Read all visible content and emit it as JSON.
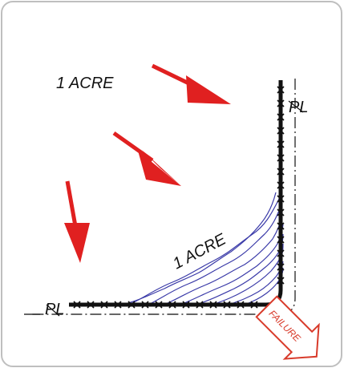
{
  "labels": {
    "acre_top": "1 ACRE",
    "acre_corner": "1 ACRE",
    "pl_right": "PL",
    "pl_bottom": "PL",
    "failure": "FAILURE"
  },
  "colors": {
    "frame_border": "#bfbfbf",
    "silt_fence": "#111111",
    "property_line": "#333333",
    "flow_arrow": "#e02020",
    "ponding_hatch": "#3a3aa8",
    "failure_arrow": "#d83a2a"
  },
  "icons": {
    "flow_arrow": "arrow-down-right",
    "failure_arrow": "outline-arrow-down-right"
  }
}
